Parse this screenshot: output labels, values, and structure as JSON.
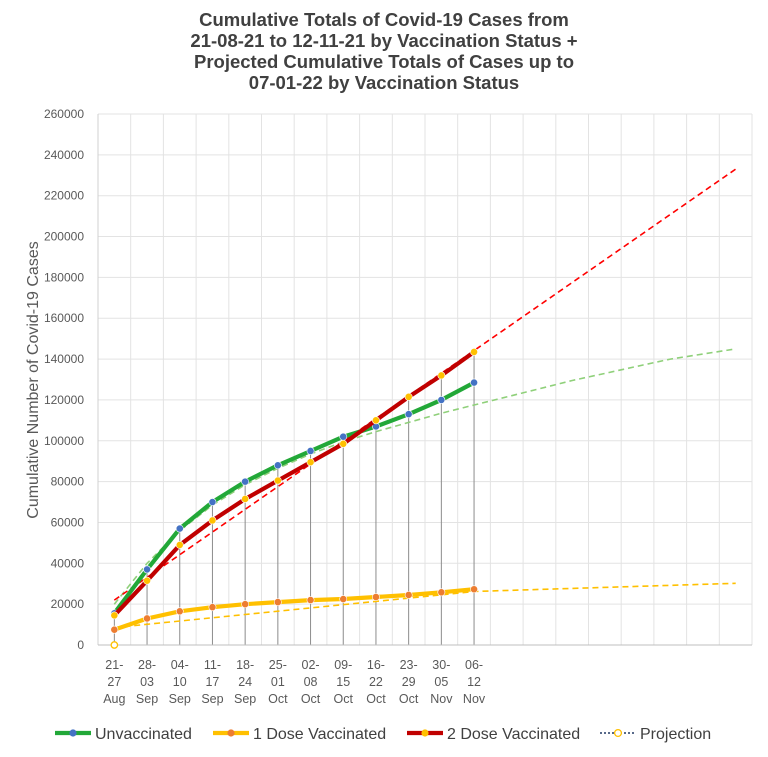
{
  "chart_data": {
    "type": "line",
    "title": [
      "Cumulative Totals of Covid-19 Cases from",
      "21-08-21 to 12-11-21 by Vaccination Status +",
      "Projected Cumulative Totals of Cases up to",
      "07-01-22 by Vaccination Status"
    ],
    "ylabel": "Cumulative Number of Covid-19 Cases",
    "xlabel": "",
    "ylim": [
      0,
      260000
    ],
    "yticks": [
      0,
      20000,
      40000,
      60000,
      80000,
      100000,
      120000,
      140000,
      160000,
      180000,
      200000,
      220000,
      240000,
      260000
    ],
    "ytick_labels": [
      "0",
      "20000",
      "40000",
      "60000",
      "80000",
      "100000",
      "120000",
      "140000",
      "160000",
      "180000",
      "200000",
      "220000",
      "240000",
      "260000"
    ],
    "categories": [
      [
        "21-",
        "27",
        "Aug"
      ],
      [
        "28-",
        "03",
        "Sep"
      ],
      [
        "04-",
        "10",
        "Sep"
      ],
      [
        "11-",
        "17",
        "Sep"
      ],
      [
        "18-",
        "24",
        "Sep"
      ],
      [
        "25-",
        "01",
        "Oct"
      ],
      [
        "02-",
        "08",
        "Oct"
      ],
      [
        "09-",
        "15",
        "Oct"
      ],
      [
        "16-",
        "22",
        "Oct"
      ],
      [
        "23-",
        "29",
        "Oct"
      ],
      [
        "30-",
        "05",
        "Nov"
      ],
      [
        "06-",
        "12",
        "Nov"
      ]
    ],
    "projection_weeks": 20,
    "grid": true,
    "legend_position": "bottom",
    "series": [
      {
        "name": "Unvaccinated",
        "color": "#22a838",
        "marker_color": "#4472c4",
        "values": [
          15500,
          37000,
          57000,
          70000,
          80000,
          88000,
          95000,
          102000,
          107000,
          113000,
          120000,
          128500
        ]
      },
      {
        "name": "1 Dose Vaccinated",
        "color": "#ffc000",
        "marker_color": "#ed7d31",
        "values": [
          7500,
          13000,
          16500,
          18500,
          20000,
          21000,
          22000,
          22500,
          23500,
          24500,
          25800,
          27300
        ]
      },
      {
        "name": "2 Dose Vaccinated",
        "color": "#c00000",
        "marker_color": "#ffc000",
        "values": [
          14500,
          31500,
          49000,
          61000,
          71500,
          80500,
          89500,
          98500,
          110000,
          121500,
          132000,
          143500
        ]
      }
    ],
    "projections": [
      {
        "series": "Unvaccinated",
        "color": "#8fd07a",
        "x": [
          0,
          1,
          2,
          3,
          4,
          5,
          6,
          7,
          8,
          9,
          10,
          11,
          12,
          13,
          14,
          15,
          16,
          17,
          18,
          19
        ],
        "values": [
          20000,
          40000,
          56000,
          68500,
          78500,
          86500,
          93500,
          99500,
          104500,
          109000,
          113500,
          117500,
          121500,
          125500,
          129500,
          133000,
          136500,
          140000,
          142500,
          145000
        ]
      },
      {
        "series": "1 Dose Vaccinated",
        "color": "#ffc000",
        "x": [
          0,
          11,
          19
        ],
        "values": [
          8500,
          26200,
          30200
        ]
      },
      {
        "series": "2 Dose Vaccinated",
        "color": "#ff0000",
        "x": [
          0,
          19
        ],
        "values": [
          22000,
          233000
        ]
      }
    ],
    "legend": [
      {
        "label": "Unvaccinated",
        "line_color": "#22a838",
        "marker_color": "#4472c4",
        "style": "solid"
      },
      {
        "label": "1 Dose Vaccinated",
        "line_color": "#ffc000",
        "marker_color": "#ed7d31",
        "style": "solid"
      },
      {
        "label": "2 Dose Vaccinated",
        "line_color": "#c00000",
        "marker_color": "#ffc000",
        "style": "solid"
      },
      {
        "label": "Projection",
        "line_color": "#203864",
        "marker_color": "#ffc000",
        "style": "dotted"
      }
    ]
  }
}
